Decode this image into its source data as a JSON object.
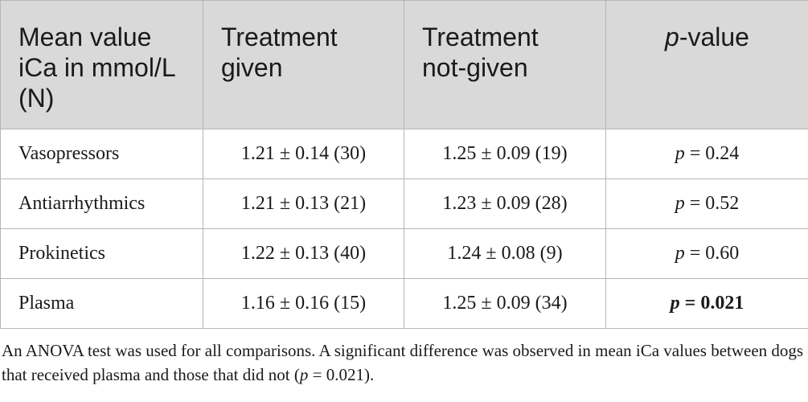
{
  "table": {
    "headers": [
      "Mean value iCa in mmol/L (N)",
      "Treatment given",
      "Treatment not-given",
      [
        "p",
        "-value"
      ]
    ],
    "rows": [
      [
        "Vasopressors",
        "1.21 ± 0.14 (30)",
        "1.25 ± 0.09 (19)",
        [
          "p",
          " = 0.24"
        ]
      ],
      [
        "Antiarrhythmics",
        "1.21 ± 0.13 (21)",
        "1.23 ± 0.09 (28)",
        [
          "p",
          " = 0.52"
        ]
      ],
      [
        "Prokinetics",
        "1.22 ± 0.13 (40)",
        "1.24 ± 0.08 (9)",
        [
          "p",
          " = 0.60"
        ]
      ],
      [
        "Plasma",
        "1.16 ± 0.16 (15)",
        "1.25 ± 0.09 (34)",
        [
          "p",
          " = 0.021"
        ]
      ]
    ],
    "bold_rows": [
      3
    ]
  },
  "footnote": [
    "An ANOVA test was used for all comparisons. A significant difference was observed in mean iCa values between dogs that received plasma and those that did not (",
    "p",
    " = 0.021)."
  ]
}
